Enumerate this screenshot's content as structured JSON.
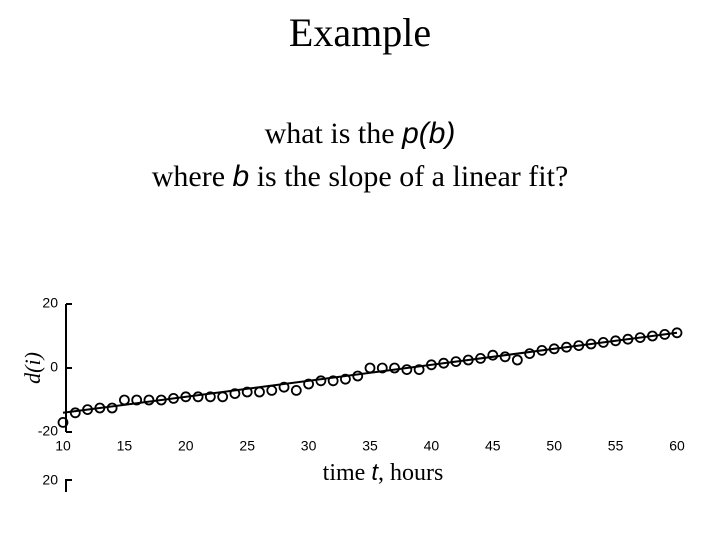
{
  "slide": {
    "title": "Example",
    "question": [
      [
        {
          "text": "what is the "
        },
        {
          "text": "p(b)",
          "italic": true
        }
      ],
      [
        {
          "text": "where "
        },
        {
          "text": "b",
          "italic": true
        },
        {
          "text": " is the slope of a linear fit?"
        }
      ]
    ]
  },
  "chart_data": {
    "type": "scatter",
    "x_label": [
      {
        "text": "time "
      },
      {
        "text": "t",
        "italic": true
      },
      {
        "text": ", hours"
      }
    ],
    "y_label": "d(i)",
    "xlim": [
      10,
      60
    ],
    "xticks": [
      10,
      15,
      20,
      25,
      30,
      35,
      40,
      45,
      50,
      55,
      60
    ],
    "ylim": [
      -20,
      20
    ],
    "yticks": [
      -20,
      0,
      20
    ],
    "color": "#000000",
    "x": [
      10,
      11,
      12,
      13,
      14,
      15,
      16,
      17,
      18,
      19,
      20,
      21,
      22,
      23,
      24,
      25,
      26,
      27,
      28,
      29,
      30,
      31,
      32,
      33,
      34,
      35,
      36,
      37,
      38,
      39,
      40,
      41,
      42,
      43,
      44,
      45,
      46,
      47,
      48,
      49,
      50,
      51,
      52,
      53,
      54,
      55,
      56,
      57,
      58,
      59,
      60
    ],
    "values": [
      -17,
      -14,
      -13,
      -12.5,
      -12.5,
      -10,
      -10,
      -10,
      -10,
      -9.5,
      -9,
      -9,
      -9,
      -9,
      -8,
      -7.5,
      -7.5,
      -7,
      -6,
      -7,
      -5,
      -4,
      -4,
      -3.5,
      -2.5,
      0,
      0,
      0,
      -0.5,
      -0.5,
      1,
      1.5,
      2,
      2.5,
      3,
      4,
      3.5,
      2.5,
      4.5,
      5.5,
      6,
      6.5,
      7,
      7.5,
      8,
      8.5,
      9,
      9.5,
      10,
      10.5,
      11
    ],
    "fit": {
      "x": [
        10,
        60
      ],
      "values": [
        -14,
        11
      ]
    }
  },
  "partial_chart": {
    "ytick": 20
  }
}
